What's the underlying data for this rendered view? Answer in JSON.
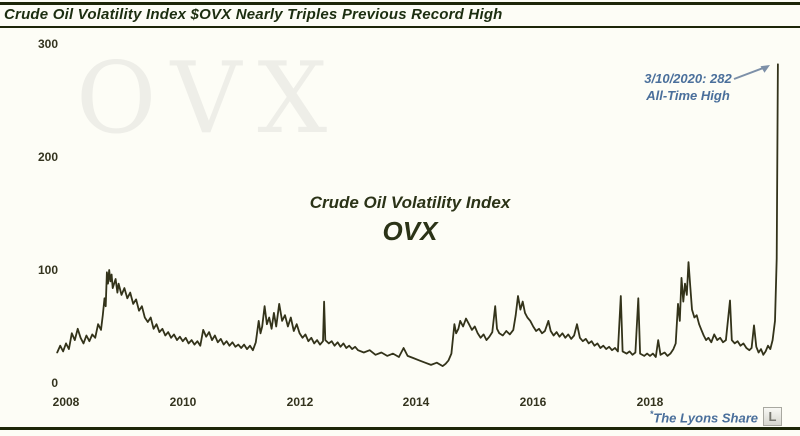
{
  "header": {
    "title": "Crude Oil Volatility Index $OVX Nearly Triples Previous Record High"
  },
  "watermark": "OVX",
  "center_label": {
    "line1": "Crude Oil Volatility Index",
    "line2": "OVX"
  },
  "annotation": {
    "line1": "3/10/2020: 282",
    "line2": "All-Time High"
  },
  "footer": {
    "asterisk": "*",
    "credit": "The Lyons Share",
    "logo_letter": "L"
  },
  "colors": {
    "line": "#33331a",
    "accent_blue": "#4a6f9b",
    "arrow": "#7d90a8",
    "title": "#1c2e10",
    "watermark": "#eeeee8"
  },
  "chart_data": {
    "type": "line",
    "title": "Crude Oil Volatility Index OVX",
    "xlabel": "",
    "ylabel": "",
    "x_ticks": [
      "2008",
      "2010",
      "2012",
      "2014",
      "2016",
      "2018"
    ],
    "y_ticks": [
      "300",
      "200",
      "100",
      "0"
    ],
    "ylim": [
      0,
      300
    ],
    "x_range_years": [
      2007.85,
      2020.19
    ],
    "grid": false,
    "legend": false,
    "annotation": {
      "date": "3/10/2020",
      "value": 282,
      "label": "All-Time High"
    },
    "series": [
      {
        "name": "OVX",
        "points": [
          [
            2007.85,
            27
          ],
          [
            2007.9,
            33
          ],
          [
            2007.95,
            28
          ],
          [
            2008.0,
            35
          ],
          [
            2008.05,
            30
          ],
          [
            2008.1,
            44
          ],
          [
            2008.15,
            38
          ],
          [
            2008.2,
            48
          ],
          [
            2008.25,
            40
          ],
          [
            2008.3,
            35
          ],
          [
            2008.35,
            42
          ],
          [
            2008.4,
            37
          ],
          [
            2008.45,
            43
          ],
          [
            2008.5,
            40
          ],
          [
            2008.55,
            52
          ],
          [
            2008.6,
            47
          ],
          [
            2008.63,
            60
          ],
          [
            2008.66,
            75
          ],
          [
            2008.68,
            68
          ],
          [
            2008.7,
            98
          ],
          [
            2008.72,
            88
          ],
          [
            2008.74,
            100
          ],
          [
            2008.76,
            90
          ],
          [
            2008.78,
            96
          ],
          [
            2008.8,
            84
          ],
          [
            2008.85,
            92
          ],
          [
            2008.88,
            80
          ],
          [
            2008.9,
            88
          ],
          [
            2008.95,
            78
          ],
          [
            2009.0,
            84
          ],
          [
            2009.05,
            75
          ],
          [
            2009.1,
            80
          ],
          [
            2009.15,
            70
          ],
          [
            2009.2,
            74
          ],
          [
            2009.25,
            64
          ],
          [
            2009.3,
            68
          ],
          [
            2009.35,
            58
          ],
          [
            2009.4,
            54
          ],
          [
            2009.45,
            58
          ],
          [
            2009.5,
            48
          ],
          [
            2009.55,
            52
          ],
          [
            2009.6,
            45
          ],
          [
            2009.65,
            48
          ],
          [
            2009.7,
            42
          ],
          [
            2009.75,
            45
          ],
          [
            2009.8,
            40
          ],
          [
            2009.85,
            43
          ],
          [
            2009.9,
            38
          ],
          [
            2009.95,
            41
          ],
          [
            2010.0,
            37
          ],
          [
            2010.05,
            40
          ],
          [
            2010.1,
            35
          ],
          [
            2010.15,
            38
          ],
          [
            2010.2,
            34
          ],
          [
            2010.25,
            37
          ],
          [
            2010.3,
            33
          ],
          [
            2010.35,
            47
          ],
          [
            2010.4,
            41
          ],
          [
            2010.45,
            45
          ],
          [
            2010.5,
            38
          ],
          [
            2010.55,
            42
          ],
          [
            2010.6,
            36
          ],
          [
            2010.65,
            39
          ],
          [
            2010.7,
            34
          ],
          [
            2010.75,
            37
          ],
          [
            2010.8,
            33
          ],
          [
            2010.85,
            36
          ],
          [
            2010.9,
            32
          ],
          [
            2010.95,
            34
          ],
          [
            2011.0,
            31
          ],
          [
            2011.05,
            34
          ],
          [
            2011.1,
            30
          ],
          [
            2011.15,
            33
          ],
          [
            2011.2,
            29
          ],
          [
            2011.25,
            36
          ],
          [
            2011.3,
            55
          ],
          [
            2011.33,
            44
          ],
          [
            2011.36,
            50
          ],
          [
            2011.4,
            68
          ],
          [
            2011.44,
            52
          ],
          [
            2011.48,
            58
          ],
          [
            2011.52,
            48
          ],
          [
            2011.56,
            62
          ],
          [
            2011.6,
            50
          ],
          [
            2011.65,
            70
          ],
          [
            2011.7,
            55
          ],
          [
            2011.75,
            60
          ],
          [
            2011.8,
            50
          ],
          [
            2011.85,
            58
          ],
          [
            2011.9,
            46
          ],
          [
            2011.95,
            52
          ],
          [
            2012.0,
            44
          ],
          [
            2012.05,
            40
          ],
          [
            2012.1,
            43
          ],
          [
            2012.15,
            37
          ],
          [
            2012.2,
            40
          ],
          [
            2012.25,
            35
          ],
          [
            2012.3,
            38
          ],
          [
            2012.35,
            34
          ],
          [
            2012.4,
            37
          ],
          [
            2012.42,
            72
          ],
          [
            2012.44,
            38
          ],
          [
            2012.5,
            35
          ],
          [
            2012.55,
            37
          ],
          [
            2012.6,
            33
          ],
          [
            2012.65,
            36
          ],
          [
            2012.7,
            32
          ],
          [
            2012.75,
            35
          ],
          [
            2012.8,
            31
          ],
          [
            2012.85,
            33
          ],
          [
            2012.9,
            30
          ],
          [
            2012.95,
            32
          ],
          [
            2013.0,
            29
          ],
          [
            2013.1,
            27
          ],
          [
            2013.2,
            29
          ],
          [
            2013.3,
            25
          ],
          [
            2013.4,
            27
          ],
          [
            2013.5,
            24
          ],
          [
            2013.6,
            26
          ],
          [
            2013.7,
            23
          ],
          [
            2013.78,
            31
          ],
          [
            2013.85,
            24
          ],
          [
            2013.95,
            22
          ],
          [
            2014.05,
            20
          ],
          [
            2014.15,
            18
          ],
          [
            2014.25,
            16
          ],
          [
            2014.35,
            18
          ],
          [
            2014.45,
            15
          ],
          [
            2014.5,
            17
          ],
          [
            2014.55,
            20
          ],
          [
            2014.6,
            26
          ],
          [
            2014.65,
            52
          ],
          [
            2014.68,
            44
          ],
          [
            2014.72,
            48
          ],
          [
            2014.75,
            55
          ],
          [
            2014.8,
            50
          ],
          [
            2014.85,
            57
          ],
          [
            2014.9,
            52
          ],
          [
            2014.95,
            47
          ],
          [
            2015.0,
            50
          ],
          [
            2015.05,
            44
          ],
          [
            2015.1,
            40
          ],
          [
            2015.15,
            43
          ],
          [
            2015.2,
            38
          ],
          [
            2015.25,
            41
          ],
          [
            2015.3,
            45
          ],
          [
            2015.35,
            68
          ],
          [
            2015.38,
            48
          ],
          [
            2015.42,
            44
          ],
          [
            2015.48,
            42
          ],
          [
            2015.54,
            46
          ],
          [
            2015.6,
            43
          ],
          [
            2015.66,
            47
          ],
          [
            2015.7,
            60
          ],
          [
            2015.74,
            77
          ],
          [
            2015.78,
            65
          ],
          [
            2015.82,
            72
          ],
          [
            2015.86,
            62
          ],
          [
            2015.9,
            58
          ],
          [
            2015.95,
            55
          ],
          [
            2016.0,
            50
          ],
          [
            2016.05,
            46
          ],
          [
            2016.1,
            48
          ],
          [
            2016.15,
            44
          ],
          [
            2016.2,
            46
          ],
          [
            2016.26,
            55
          ],
          [
            2016.3,
            46
          ],
          [
            2016.35,
            42
          ],
          [
            2016.4,
            45
          ],
          [
            2016.45,
            41
          ],
          [
            2016.5,
            44
          ],
          [
            2016.55,
            40
          ],
          [
            2016.6,
            43
          ],
          [
            2016.65,
            39
          ],
          [
            2016.7,
            42
          ],
          [
            2016.75,
            52
          ],
          [
            2016.8,
            40
          ],
          [
            2016.85,
            37
          ],
          [
            2016.9,
            39
          ],
          [
            2016.95,
            35
          ],
          [
            2017.0,
            37
          ],
          [
            2017.05,
            33
          ],
          [
            2017.1,
            35
          ],
          [
            2017.15,
            31
          ],
          [
            2017.2,
            33
          ],
          [
            2017.25,
            30
          ],
          [
            2017.3,
            32
          ],
          [
            2017.35,
            29
          ],
          [
            2017.4,
            31
          ],
          [
            2017.45,
            28
          ],
          [
            2017.5,
            77
          ],
          [
            2017.53,
            28
          ],
          [
            2017.6,
            26
          ],
          [
            2017.65,
            28
          ],
          [
            2017.7,
            25
          ],
          [
            2017.75,
            27
          ],
          [
            2017.8,
            75
          ],
          [
            2017.83,
            26
          ],
          [
            2017.9,
            24
          ],
          [
            2017.95,
            26
          ],
          [
            2018.0,
            24
          ],
          [
            2018.05,
            26
          ],
          [
            2018.1,
            23
          ],
          [
            2018.14,
            38
          ],
          [
            2018.18,
            25
          ],
          [
            2018.25,
            27
          ],
          [
            2018.3,
            24
          ],
          [
            2018.35,
            26
          ],
          [
            2018.4,
            30
          ],
          [
            2018.44,
            35
          ],
          [
            2018.48,
            70
          ],
          [
            2018.51,
            55
          ],
          [
            2018.54,
            93
          ],
          [
            2018.57,
            72
          ],
          [
            2018.6,
            88
          ],
          [
            2018.63,
            78
          ],
          [
            2018.66,
            107
          ],
          [
            2018.69,
            85
          ],
          [
            2018.72,
            65
          ],
          [
            2018.76,
            58
          ],
          [
            2018.8,
            60
          ],
          [
            2018.84,
            52
          ],
          [
            2018.88,
            47
          ],
          [
            2018.92,
            42
          ],
          [
            2018.96,
            38
          ],
          [
            2019.0,
            40
          ],
          [
            2019.05,
            36
          ],
          [
            2019.1,
            43
          ],
          [
            2019.15,
            38
          ],
          [
            2019.2,
            40
          ],
          [
            2019.25,
            36
          ],
          [
            2019.3,
            38
          ],
          [
            2019.37,
            73
          ],
          [
            2019.4,
            38
          ],
          [
            2019.45,
            35
          ],
          [
            2019.5,
            37
          ],
          [
            2019.55,
            33
          ],
          [
            2019.6,
            35
          ],
          [
            2019.65,
            31
          ],
          [
            2019.7,
            29
          ],
          [
            2019.74,
            31
          ],
          [
            2019.78,
            51
          ],
          [
            2019.82,
            32
          ],
          [
            2019.86,
            27
          ],
          [
            2019.9,
            30
          ],
          [
            2019.94,
            25
          ],
          [
            2019.98,
            28
          ],
          [
            2020.02,
            33
          ],
          [
            2020.06,
            30
          ],
          [
            2020.1,
            38
          ],
          [
            2020.14,
            55
          ],
          [
            2020.17,
            110
          ],
          [
            2020.19,
            282
          ]
        ]
      }
    ]
  }
}
